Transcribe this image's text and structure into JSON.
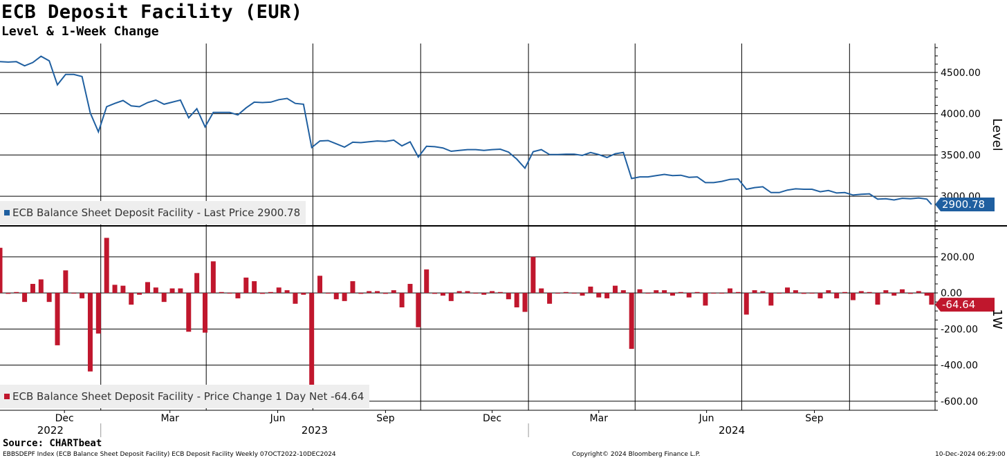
{
  "header": {
    "title": "ECB Deposit Facility (EUR)",
    "subtitle": "Level & 1-Week Change"
  },
  "footer": {
    "source": "Source: CHARTbeat",
    "description": "EBBSDEPF Index (ECB Balance Sheet Deposit Facility) ECB Deposit Facility  Weekly 07OCT2022-10DEC2024",
    "copyright": "Copyright© 2024 Bloomberg Finance L.P.",
    "timestamp": "10-Dec-2024 06:29:00"
  },
  "colors": {
    "level_line": "#1f5fa0",
    "change_bar": "#c0172d"
  },
  "chart_data": [
    {
      "type": "line",
      "ylabel": "Level",
      "ylim": [
        2650,
        4850
      ],
      "yticks": [
        3000,
        3500,
        4000,
        4500
      ],
      "ytick_labels": [
        "3000.00",
        "3500.00",
        "4000.00",
        "4500.00"
      ],
      "xlim": [
        "2022-10-07",
        "2024-12-13"
      ],
      "grid": true,
      "last_value_label": "2900.78",
      "legend": "ECB Balance Sheet Deposit Facility - Last Price 2900.78",
      "series": [
        {
          "x": [
            "2022-10-07",
            "2022-10-14",
            "2022-10-21",
            "2022-10-28",
            "2022-11-04",
            "2022-11-11",
            "2022-11-18",
            "2022-11-25",
            "2022-12-02",
            "2022-12-09",
            "2022-12-16",
            "2022-12-23",
            "2022-12-30",
            "2023-01-06",
            "2023-01-13",
            "2023-01-20",
            "2023-01-27",
            "2023-02-03",
            "2023-02-10",
            "2023-02-17",
            "2023-02-24",
            "2023-03-03",
            "2023-03-10",
            "2023-03-17",
            "2023-03-24",
            "2023-03-31",
            "2023-04-07",
            "2023-04-14",
            "2023-04-21",
            "2023-04-28",
            "2023-05-05",
            "2023-05-12",
            "2023-05-19",
            "2023-05-26",
            "2023-06-02",
            "2023-06-09",
            "2023-06-16",
            "2023-06-23",
            "2023-06-30",
            "2023-07-07",
            "2023-07-14",
            "2023-07-21",
            "2023-07-28",
            "2023-08-04",
            "2023-08-11",
            "2023-08-18",
            "2023-08-25",
            "2023-09-01",
            "2023-09-08",
            "2023-09-15",
            "2023-09-22",
            "2023-09-29",
            "2023-10-06",
            "2023-10-13",
            "2023-10-20",
            "2023-10-27",
            "2023-11-03",
            "2023-11-10",
            "2023-11-17",
            "2023-11-24",
            "2023-12-01",
            "2023-12-08",
            "2023-12-15",
            "2023-12-22",
            "2023-12-29",
            "2024-01-05",
            "2024-01-12",
            "2024-01-19",
            "2024-01-26",
            "2024-02-02",
            "2024-02-09",
            "2024-02-16",
            "2024-02-23",
            "2024-03-01",
            "2024-03-08",
            "2024-03-15",
            "2024-03-22",
            "2024-03-29",
            "2024-04-05",
            "2024-04-12",
            "2024-04-19",
            "2024-04-26",
            "2024-05-03",
            "2024-05-10",
            "2024-05-17",
            "2024-05-24",
            "2024-05-31",
            "2024-06-07",
            "2024-06-14",
            "2024-06-21",
            "2024-06-28",
            "2024-07-05",
            "2024-07-12",
            "2024-07-19",
            "2024-07-26",
            "2024-08-02",
            "2024-08-09",
            "2024-08-16",
            "2024-08-23",
            "2024-08-30",
            "2024-09-06",
            "2024-09-13",
            "2024-09-20",
            "2024-09-27",
            "2024-10-04",
            "2024-10-11",
            "2024-10-18",
            "2024-10-25",
            "2024-11-01",
            "2024-11-08",
            "2024-11-15",
            "2024-11-22",
            "2024-11-29",
            "2024-12-06",
            "2024-12-10"
          ],
          "y": [
            4630,
            4625,
            4630,
            4580,
            4620,
            4695,
            4640,
            4350,
            4475,
            4475,
            4450,
            4010,
            3780,
            4085,
            4125,
            4160,
            4095,
            4085,
            4135,
            4165,
            4115,
            4140,
            4165,
            3950,
            4060,
            3840,
            4015,
            4015,
            4015,
            3985,
            4070,
            4140,
            4135,
            4140,
            4170,
            4185,
            4125,
            4115,
            3590,
            3670,
            3675,
            3635,
            3595,
            3655,
            3650,
            3660,
            3670,
            3665,
            3680,
            3610,
            3660,
            3475,
            3605,
            3600,
            3585,
            3545,
            3555,
            3565,
            3565,
            3555,
            3565,
            3570,
            3535,
            3450,
            3340,
            3540,
            3565,
            3505,
            3505,
            3510,
            3510,
            3495,
            3530,
            3505,
            3470,
            3515,
            3530,
            3215,
            3235,
            3235,
            3250,
            3265,
            3250,
            3255,
            3230,
            3235,
            3165,
            3165,
            3180,
            3205,
            3210,
            3085,
            3105,
            3115,
            3045,
            3045,
            3075,
            3090,
            3085,
            3085,
            3055,
            3070,
            3040,
            3045,
            3015,
            3025,
            3030,
            2965,
            2970,
            2955,
            2975,
            2970,
            2980,
            2965,
            2900.78
          ]
        }
      ]
    },
    {
      "type": "bar",
      "ylabel": "1W",
      "ylim": [
        -650,
        360
      ],
      "yticks": [
        -600,
        -400,
        -200,
        0,
        200
      ],
      "ytick_labels": [
        "-600.00",
        "-400.00",
        "-200.00",
        "0.00",
        "200.00"
      ],
      "grid": true,
      "last_value_label": "-64.64",
      "legend": "ECB Balance Sheet Deposit Facility - Price Change 1 Day Net -64.64",
      "series": [
        {
          "values": [
            250,
            -5,
            5,
            -50,
            50,
            75,
            -50,
            -290,
            125,
            0,
            -30,
            -435,
            -225,
            305,
            45,
            40,
            -65,
            -10,
            60,
            30,
            -50,
            25,
            25,
            -215,
            110,
            -220,
            175,
            5,
            0,
            -30,
            85,
            65,
            -5,
            5,
            30,
            15,
            -60,
            -10,
            -525,
            95,
            0,
            -35,
            -45,
            65,
            -5,
            10,
            10,
            -5,
            15,
            -80,
            50,
            -190,
            130,
            -5,
            -15,
            -45,
            10,
            10,
            0,
            -10,
            10,
            5,
            -35,
            -80,
            -105,
            200,
            25,
            -60,
            0,
            5,
            0,
            -15,
            35,
            -25,
            -30,
            40,
            15,
            -310,
            20,
            0,
            15,
            15,
            -15,
            5,
            -25,
            5,
            -70,
            0,
            0,
            25,
            5,
            -120,
            15,
            10,
            -70,
            0,
            30,
            15,
            -5,
            0,
            -30,
            15,
            -30,
            5,
            -40,
            10,
            5,
            -65,
            15,
            -15,
            20,
            -5,
            10,
            -15,
            -65
          ]
        }
      ]
    }
  ],
  "x_axis": {
    "months": [
      {
        "date": "2022-12-01",
        "label": "Dec"
      },
      {
        "date": "2023-03-01",
        "label": "Mar"
      },
      {
        "date": "2023-06-01",
        "label": "Jun"
      },
      {
        "date": "2023-09-01",
        "label": "Sep"
      },
      {
        "date": "2023-12-01",
        "label": "Dec"
      },
      {
        "date": "2024-03-01",
        "label": "Mar"
      },
      {
        "date": "2024-06-01",
        "label": "Jun"
      },
      {
        "date": "2024-09-01",
        "label": "Sep"
      }
    ],
    "years": [
      {
        "label": "2022",
        "from": "2022-10-07",
        "to": "2023-01-01"
      },
      {
        "label": "2023",
        "from": "2023-01-01",
        "to": "2024-01-01"
      },
      {
        "label": "2024",
        "from": "2024-01-01",
        "to": "2024-12-13"
      }
    ],
    "gridlines": [
      "2023-01-01",
      "2023-04-01",
      "2023-07-01",
      "2023-10-01",
      "2024-01-01",
      "2024-04-01",
      "2024-07-01",
      "2024-10-01"
    ]
  }
}
